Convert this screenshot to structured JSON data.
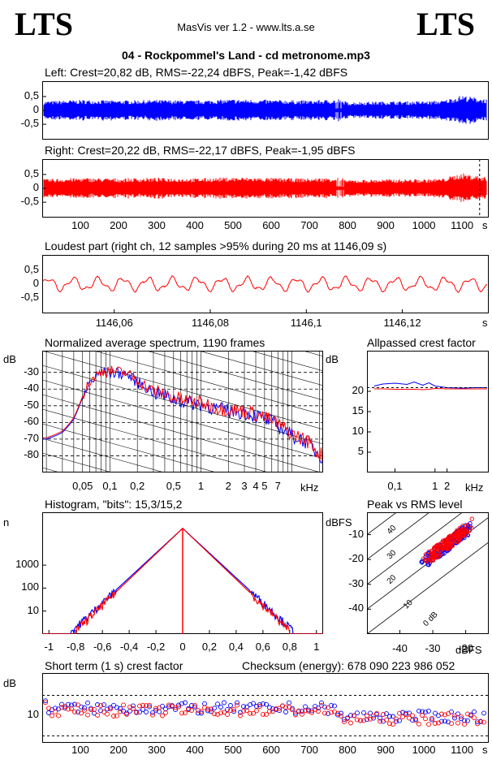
{
  "header": {
    "logo_left": "LTS",
    "logo_right": "LTS",
    "app_title": "MasVis ver 1.2 - www.lts.a.se",
    "file_title": "04 - Rockpommel's Land - cd metronome.mp3"
  },
  "chart_data": [
    {
      "type": "line",
      "title": "Left: Crest=20,82 dB, RMS=-22,24 dBFS, Peak=-1,42 dBFS",
      "series": [
        {
          "color": "#0000ff"
        }
      ],
      "yticks": [
        "0,5",
        "0",
        "-0,5"
      ],
      "ylim": [
        -1,
        1
      ],
      "xlim": [
        0,
        1170
      ],
      "envelope_x": [
        0,
        100,
        200,
        300,
        400,
        500,
        600,
        700,
        780,
        800,
        900,
        1000,
        1050,
        1100,
        1120,
        1170
      ],
      "envelope_y": [
        0.33,
        0.38,
        0.36,
        0.38,
        0.36,
        0.4,
        0.38,
        0.36,
        0.4,
        0.3,
        0.33,
        0.33,
        0.36,
        0.55,
        0.5,
        0.4
      ]
    },
    {
      "type": "line",
      "title": "Right: Crest=20,22 dB, RMS=-22,17 dBFS, Peak=-1,95 dBFS",
      "series": [
        {
          "color": "#ff0000"
        }
      ],
      "yticks": [
        "0,5",
        "0",
        "-0,5"
      ],
      "ylim": [
        -1,
        1
      ],
      "xlim": [
        0,
        1170
      ],
      "xlabel": "s",
      "xticks": [
        "100",
        "200",
        "300",
        "400",
        "500",
        "600",
        "700",
        "800",
        "900",
        "1000",
        "1100"
      ],
      "marker_x": 1146.09,
      "envelope_x": [
        0,
        100,
        200,
        300,
        400,
        500,
        600,
        700,
        780,
        800,
        900,
        1000,
        1050,
        1100,
        1120,
        1170
      ],
      "envelope_y": [
        0.33,
        0.38,
        0.36,
        0.38,
        0.36,
        0.4,
        0.38,
        0.36,
        0.4,
        0.3,
        0.33,
        0.33,
        0.36,
        0.55,
        0.5,
        0.4
      ]
    },
    {
      "type": "line",
      "title": "Loudest part (right ch, 12 samples >95% during 20 ms at 1146,09 s)",
      "series": [
        {
          "color": "#ff0000"
        }
      ],
      "yticks": [
        "0,5",
        "0",
        "-0,5"
      ],
      "ylim": [
        -1,
        1
      ],
      "xlim": [
        1146.045,
        1146.138
      ],
      "xticks": [
        "1146,06",
        "1146,08",
        "1146,1",
        "1146,12"
      ],
      "xlabel": "s",
      "cycles": 18,
      "amplitude": 0.25
    },
    {
      "type": "line",
      "title": "Normalized average spectrum, 1190 frames",
      "ylabel": "dB",
      "yticks": [
        "-30",
        "-40",
        "-50",
        "-60",
        "-70",
        "-80"
      ],
      "ylim": [
        -90,
        -17
      ],
      "xticks": [
        "0,05",
        "0,1",
        "0,2",
        "0,5",
        "1",
        "2",
        "3",
        "4",
        "5",
        "7"
      ],
      "xlabel": "kHz",
      "x_khz": [
        0.02,
        0.03,
        0.04,
        0.05,
        0.06,
        0.08,
        0.1,
        0.15,
        0.2,
        0.3,
        0.5,
        0.7,
        1,
        1.5,
        2,
        3,
        4,
        5,
        7,
        10,
        15,
        20
      ],
      "y_db": [
        -70,
        -66,
        -58,
        -45,
        -36,
        -30,
        -30,
        -31,
        -36,
        -42,
        -46,
        -48,
        -49,
        -52,
        -53,
        -54,
        -56,
        -58,
        -62,
        -68,
        -72,
        -80
      ],
      "series": [
        {
          "color": "#0000ff"
        },
        {
          "color": "#ff0000"
        }
      ]
    },
    {
      "type": "line",
      "title": "Allpassed crest factor",
      "ylabel": "dB",
      "yticks": [
        "20",
        "15",
        "10",
        "5"
      ],
      "ylim": [
        0,
        30
      ],
      "xticks": [
        "0,1",
        "1",
        "2"
      ],
      "xlabel": "kHz",
      "series": [
        {
          "color": "#0000ff",
          "x_khz": [
            0.03,
            0.05,
            0.1,
            0.2,
            0.3,
            0.5,
            0.7,
            1,
            2,
            5,
            10,
            20
          ],
          "y": [
            21.3,
            21.8,
            22,
            21.7,
            22.3,
            21.5,
            22.1,
            21.3,
            20.9,
            20.8,
            20.9,
            20.9
          ]
        },
        {
          "color": "#ff0000",
          "x_khz": [
            0.03,
            0.05,
            0.1,
            0.2,
            0.3,
            0.5,
            0.7,
            1,
            2,
            5,
            10,
            20
          ],
          "y": [
            20.6,
            20.6,
            20.5,
            20.5,
            20.5,
            20.4,
            20.5,
            20.7,
            20.6,
            20.6,
            20.6,
            20.6
          ]
        }
      ]
    },
    {
      "type": "line",
      "title": "Histogram, \"bits\": 15,3/15,2",
      "ylabel": "n",
      "yticks": [
        "1000",
        "100",
        "10"
      ],
      "ylim_log": [
        1,
        200000
      ],
      "xlim": [
        -1.05,
        1.05
      ],
      "xticks": [
        "-1",
        "-0,8",
        "-0,6",
        "-0,4",
        "-0,2",
        "0",
        "0,2",
        "0,4",
        "0,6",
        "0,8",
        "1"
      ],
      "series": [
        {
          "color": "#0000ff",
          "peak": 40000,
          "decay": 12.4,
          "range": 0.84
        },
        {
          "color": "#ff0000",
          "peak": 40000,
          "decay": 12.8,
          "range": 0.8
        }
      ]
    },
    {
      "type": "scatter",
      "title": "Peak vs RMS level",
      "ylabel": "dBFS",
      "xlabel": "dBFS",
      "yticks": [
        "-10",
        "-20",
        "-30",
        "-40"
      ],
      "xticks": [
        "-40",
        "-30",
        "-20"
      ],
      "xlim": [
        -50,
        -13
      ],
      "ylim": [
        -50,
        -1
      ],
      "diagonal_labels": [
        "40",
        "30",
        "20",
        "10",
        "0 dB"
      ],
      "cluster_center": [
        -25,
        -15
      ],
      "series": [
        {
          "color": "#0000ff"
        },
        {
          "color": "#ff0000"
        }
      ]
    },
    {
      "type": "scatter",
      "title": "Short term (1 s) crest factor",
      "ylabel": "dB",
      "yticks": [
        "10"
      ],
      "ylim": [
        0,
        25
      ],
      "xlim": [
        0,
        1170
      ],
      "xlabel": "s",
      "xticks": [
        "100",
        "200",
        "300",
        "400",
        "500",
        "600",
        "700",
        "800",
        "900",
        "1000",
        "1100"
      ],
      "series": [
        {
          "color": "#0000ff"
        },
        {
          "color": "#ff0000"
        }
      ]
    }
  ],
  "checksum": "Checksum (energy):   678 090 223 986 052"
}
